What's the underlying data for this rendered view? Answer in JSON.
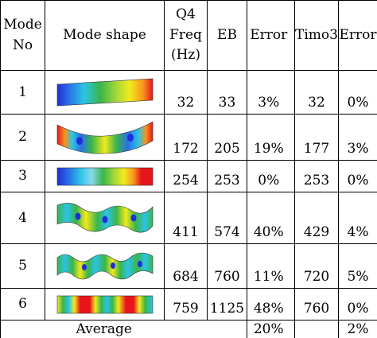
{
  "headers": {
    "mode_no": [
      "Mode",
      "No"
    ],
    "mode_shape": "Mode shape",
    "q4": [
      "Q4",
      "Freq",
      "(Hz)"
    ],
    "eb": "EB",
    "error1": "Error",
    "timo3": "Timo3",
    "error2": "Error"
  },
  "rows": [
    {
      "mode": "1",
      "q4": "32",
      "eb": "33",
      "eb_err": "3%",
      "timo": "32",
      "timo_err": "0%"
    },
    {
      "mode": "2",
      "q4": "172",
      "eb": "205",
      "eb_err": "19%",
      "timo": "177",
      "timo_err": "3%"
    },
    {
      "mode": "3",
      "q4": "254",
      "eb": "253",
      "eb_err": "0%",
      "timo": "253",
      "timo_err": "0%"
    },
    {
      "mode": "4",
      "q4": "411",
      "eb": "574",
      "eb_err": "40%",
      "timo": "429",
      "timo_err": "4%"
    },
    {
      "mode": "5",
      "q4": "684",
      "eb": "760",
      "eb_err": "11%",
      "timo": "720",
      "timo_err": "5%"
    },
    {
      "mode": "6",
      "q4": "759",
      "eb": "1125",
      "eb_err": "48%",
      "timo": "760",
      "timo_err": "0%"
    }
  ],
  "average": {
    "label": "Average",
    "eb_err": "20%",
    "timo_err": "2%"
  },
  "colors": {
    "red": "#e8141c",
    "orange": "#f7941d",
    "yellow": "#f2ea1c",
    "green": "#39b54a",
    "cyan": "#2bc4e6",
    "blue": "#1e2fd8"
  }
}
